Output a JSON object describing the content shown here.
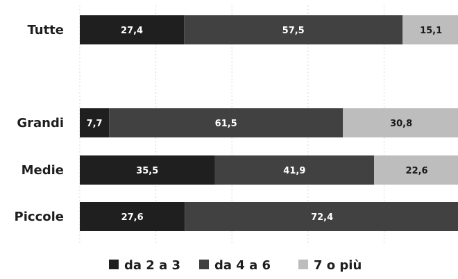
{
  "chart_data": {
    "type": "bar",
    "orientation": "horizontal",
    "stacked": true,
    "categories": [
      "Tutte",
      "Grandi",
      "Medie",
      "Piccole"
    ],
    "series": [
      {
        "name": "da 2 a 3",
        "values": [
          27.4,
          7.7,
          35.5,
          27.6
        ],
        "color": "#1f1f1f"
      },
      {
        "name": "da 4 a 6",
        "values": [
          57.5,
          61.5,
          41.9,
          72.4
        ],
        "color": "#414141"
      },
      {
        "name": "7 o più",
        "values": [
          15.1,
          30.8,
          22.6,
          0
        ],
        "color": "#bdbdbd"
      }
    ],
    "xlim": [
      0,
      100
    ],
    "grid": true,
    "legend_position": "bottom",
    "value_label_colors": [
      "#ffffff",
      "#ffffff",
      "#1a1a1a"
    ]
  }
}
